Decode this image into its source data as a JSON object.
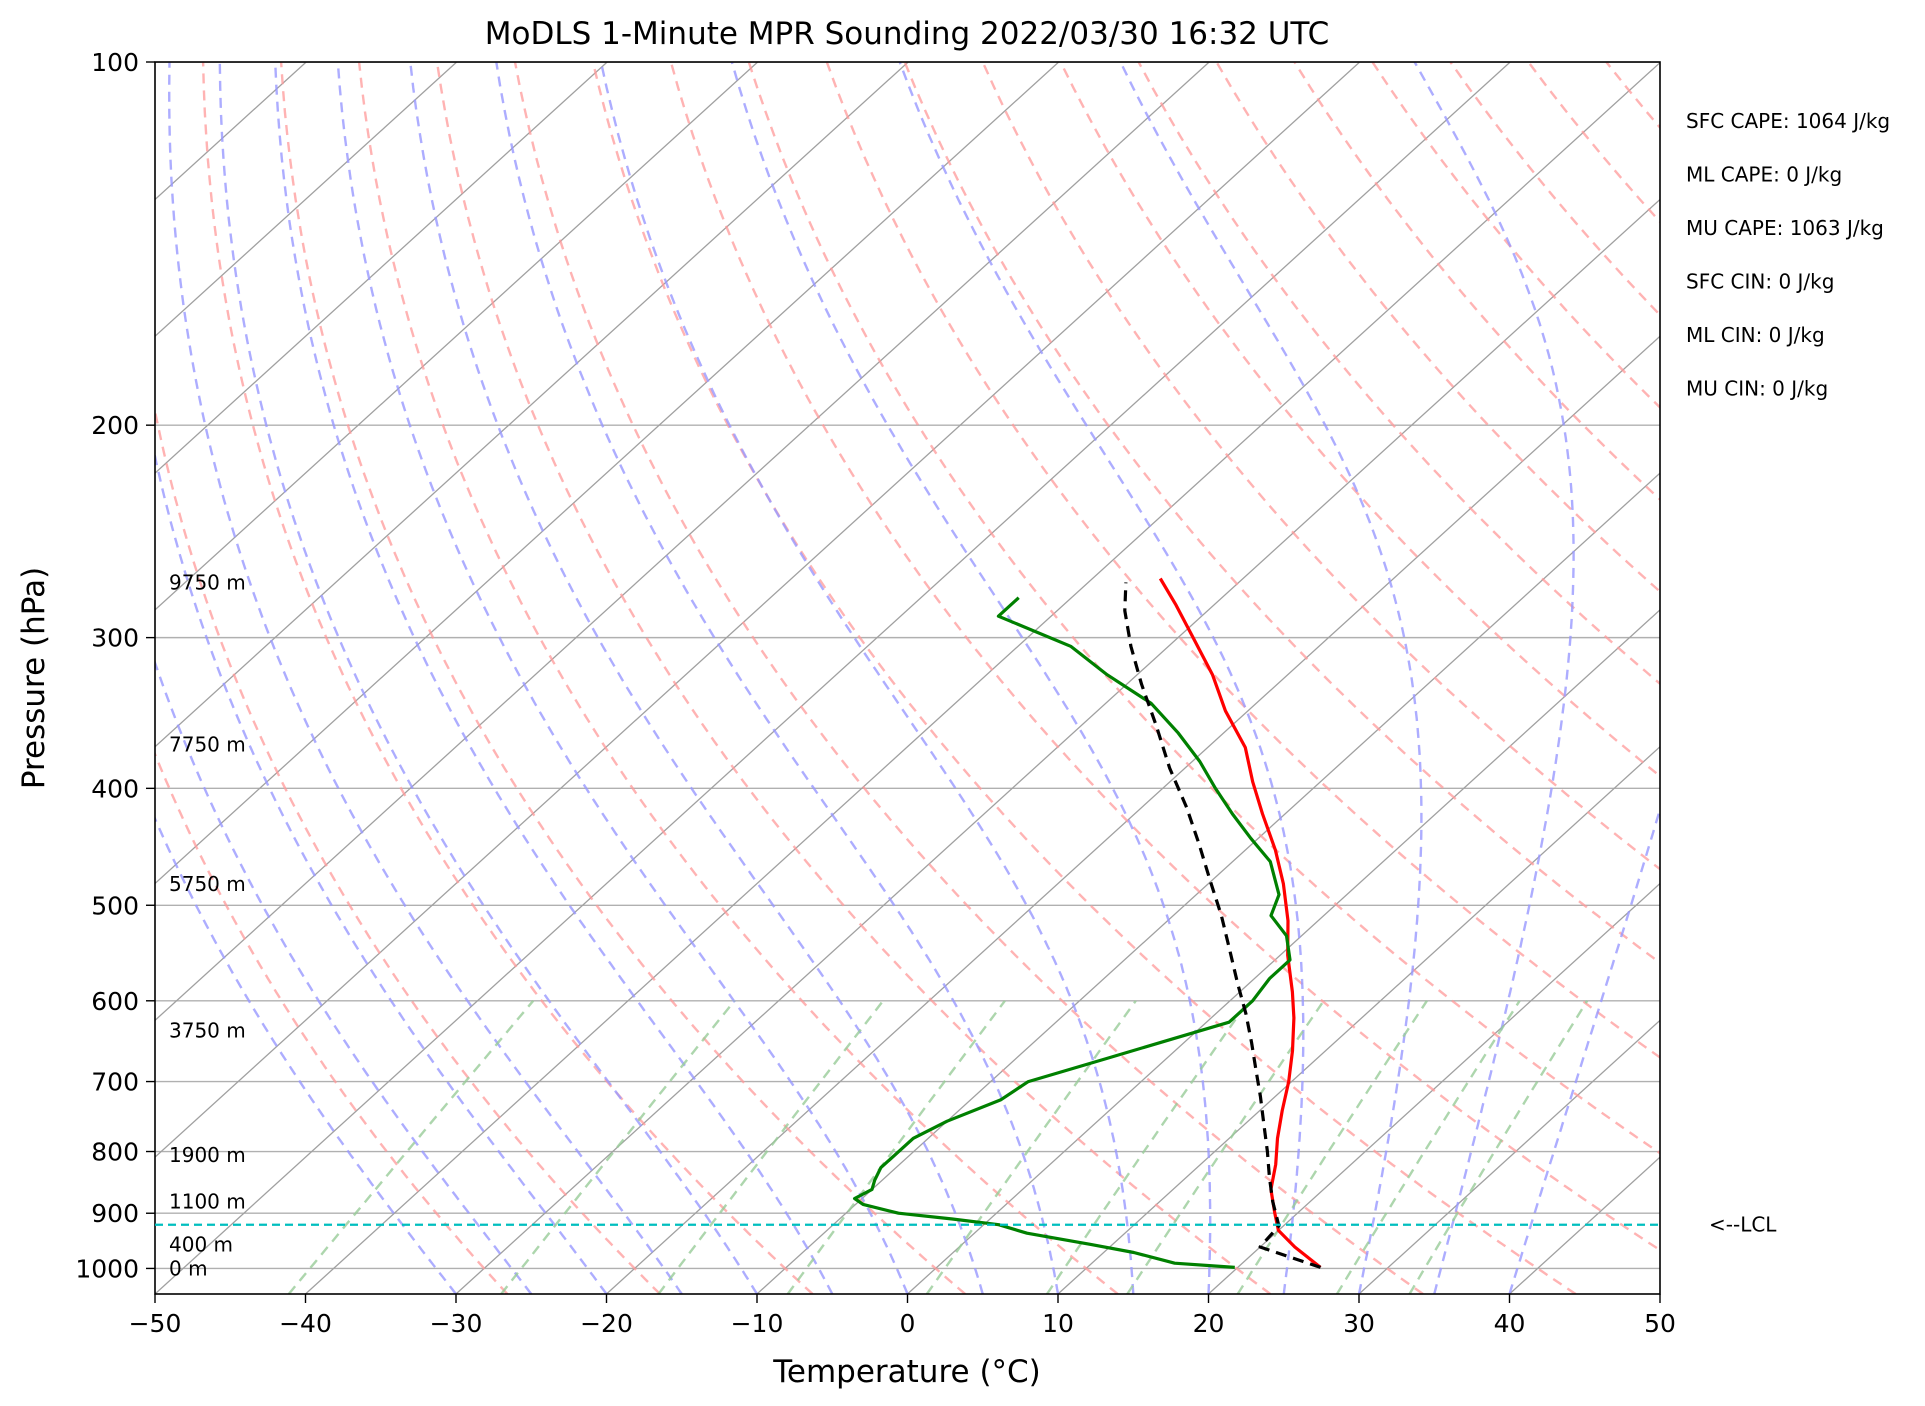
{
  "chart_data": {
    "type": "line",
    "title": "MoDLS 1-Minute MPR Sounding 2022/03/30 16:32 UTC",
    "xlabel": "Temperature (°C)",
    "ylabel": "Pressure (hPa)",
    "xlim": [
      -50,
      50
    ],
    "ylim": [
      1050,
      100
    ],
    "y_scale": "log",
    "skew": "skew-T log-P",
    "grid": true,
    "x_ticks": [
      "−50",
      "−40",
      "−30",
      "−20",
      "−10",
      "0",
      "10",
      "20",
      "30",
      "40",
      "50"
    ],
    "y_ticks": [
      "100",
      "200",
      "300",
      "400",
      "500",
      "600",
      "700",
      "800",
      "900",
      "1000"
    ],
    "series": [
      {
        "name": "",
        "color": "#ff0000",
        "points": [
          [
            25.5,
            998
          ],
          [
            22.3,
            960
          ],
          [
            20.0,
            930
          ],
          [
            18.5,
            900
          ],
          [
            16.5,
            860
          ],
          [
            15.0,
            820
          ],
          [
            13.2,
            780
          ],
          [
            11.5,
            740
          ],
          [
            9.8,
            700
          ],
          [
            7.8,
            660
          ],
          [
            5.5,
            620
          ],
          [
            3.5,
            590
          ],
          [
            0.5,
            550
          ],
          [
            -2.0,
            515
          ],
          [
            -5.0,
            480
          ],
          [
            -8.0,
            450
          ],
          [
            -11.5,
            420
          ],
          [
            -14.5,
            395
          ],
          [
            -17.5,
            370
          ],
          [
            -21.5,
            345
          ],
          [
            -25.0,
            322
          ],
          [
            -29.0,
            300
          ],
          [
            -32.5,
            282
          ],
          [
            -35.5,
            268
          ]
        ]
      },
      {
        "name": "",
        "color": "#008000",
        "points": [
          [
            19.8,
            998
          ],
          [
            15.5,
            990
          ],
          [
            12.0,
            970
          ],
          [
            8.5,
            955
          ],
          [
            3.5,
            935
          ],
          [
            1.0,
            920
          ],
          [
            -2.5,
            910
          ],
          [
            -6.5,
            900
          ],
          [
            -9.5,
            885
          ],
          [
            -10.5,
            875
          ],
          [
            -10.0,
            860
          ],
          [
            -10.5,
            845
          ],
          [
            -11.0,
            825
          ],
          [
            -11.0,
            805
          ],
          [
            -11.0,
            780
          ],
          [
            -10.0,
            755
          ],
          [
            -8.0,
            725
          ],
          [
            -7.5,
            700
          ],
          [
            -4.0,
            670
          ],
          [
            -1.0,
            645
          ],
          [
            1.5,
            625
          ],
          [
            1.5,
            600
          ],
          [
            1.0,
            575
          ],
          [
            1.0,
            555
          ],
          [
            -1.0,
            530
          ],
          [
            -3.5,
            510
          ],
          [
            -4.5,
            490
          ],
          [
            -7.5,
            460
          ],
          [
            -10.5,
            440
          ],
          [
            -13.5,
            420
          ],
          [
            -16.5,
            400
          ],
          [
            -19.5,
            380
          ],
          [
            -23.0,
            360
          ],
          [
            -27.0,
            340
          ],
          [
            -32.0,
            322
          ],
          [
            -36.5,
            305
          ],
          [
            -43.5,
            288
          ],
          [
            -43.5,
            278
          ]
        ]
      },
      {
        "name": "",
        "color": "#000000",
        "style": "dashed",
        "points": [
          [
            25.5,
            998
          ],
          [
            20.0,
            960
          ],
          [
            19.7,
            922
          ],
          [
            17.5,
            880
          ],
          [
            15.5,
            840
          ],
          [
            13.5,
            800
          ],
          [
            11.3,
            760
          ],
          [
            9.0,
            720
          ],
          [
            6.8,
            685
          ],
          [
            4.5,
            650
          ],
          [
            2.0,
            615
          ],
          [
            -0.8,
            580
          ],
          [
            -3.7,
            545
          ],
          [
            -6.8,
            510
          ],
          [
            -10.0,
            478
          ],
          [
            -13.5,
            445
          ],
          [
            -17.0,
            415
          ],
          [
            -21.0,
            385
          ],
          [
            -25.0,
            355
          ],
          [
            -29.0,
            328
          ],
          [
            -32.5,
            305
          ],
          [
            -35.5,
            285
          ],
          [
            -37.5,
            270
          ]
        ]
      }
    ],
    "height_labels": [
      {
        "text": "0 m",
        "p": 1000
      },
      {
        "text": "400 m",
        "p": 955
      },
      {
        "text": "1100 m",
        "p": 880
      },
      {
        "text": "1900 m",
        "p": 805
      },
      {
        "text": "3750 m",
        "p": 635
      },
      {
        "text": "5750 m",
        "p": 480
      },
      {
        "text": "7750 m",
        "p": 368
      },
      {
        "text": "9750 m",
        "p": 270
      }
    ],
    "lcl": {
      "p": 920,
      "label": "<--LCL",
      "color": "#00bfbf"
    },
    "indices": [
      "SFC CAPE: 1064 J/kg",
      "ML CAPE: 0 J/kg",
      "MU CAPE: 1063 J/kg",
      "SFC CIN: 0 J/kg",
      "ML CIN: 0 J/kg",
      "MU CIN: 0 J/kg"
    ],
    "colors": {
      "grid": "#b0b0b0",
      "isotherm": "#a0a0a0",
      "dry_adiabat": "#ff9999",
      "moist_adiabat": "#9999ff",
      "mixing_ratio": "#99cc99"
    }
  }
}
